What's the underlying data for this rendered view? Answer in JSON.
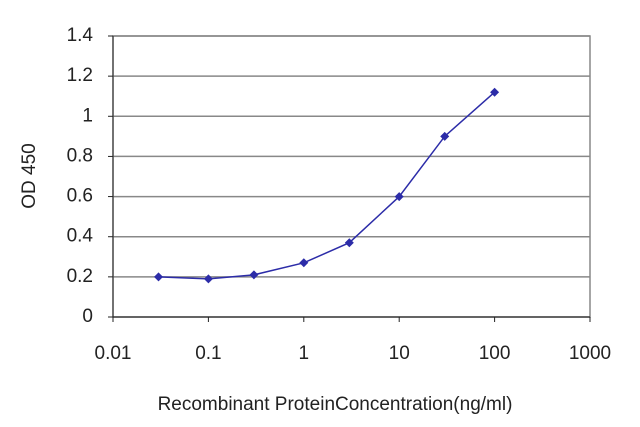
{
  "chart_data": {
    "type": "line",
    "x_label": "Recombinant ProteinConcentration(ng/ml)",
    "y_label": "OD 450",
    "x": [
      0.03,
      0.1,
      0.3,
      1,
      3,
      10,
      30,
      100
    ],
    "series": [
      {
        "color": "#2c2ca8",
        "values": [
          0.2,
          0.19,
          0.21,
          0.27,
          0.37,
          0.6,
          0.9,
          1.12
        ]
      }
    ],
    "xlim": [
      0.01,
      1000
    ],
    "xticks": [
      0.01,
      0.1,
      1,
      10,
      100,
      1000
    ],
    "xscale": "log",
    "ylim": [
      0,
      1.4
    ],
    "yticks": [
      0,
      0.2,
      0.4,
      0.6,
      0.8,
      1,
      1.2,
      1.4
    ],
    "grid": true
  }
}
